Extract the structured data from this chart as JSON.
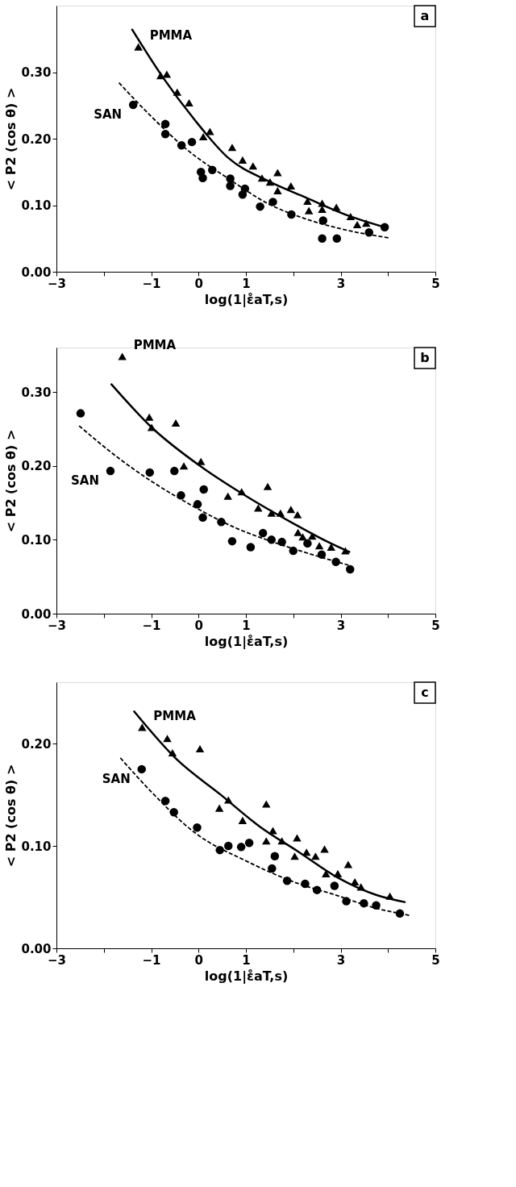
{
  "chart_data": [
    {
      "type": "scatter",
      "xlabel": "log(1|ε̊aT,s)",
      "ylabel": "< P2 (cos θ) >",
      "xlim": [
        -3,
        5
      ],
      "ylim": [
        0,
        0.4
      ],
      "xticks": [
        -3,
        {
          "value": -2,
          "label": null
        },
        -1,
        0,
        1,
        {
          "value": 2,
          "label": null
        },
        3,
        {
          "value": 4,
          "label": null
        },
        5
      ],
      "yticks": [
        {
          "value": 0,
          "label": "0.00"
        },
        {
          "value": 0.1,
          "label": "0.10"
        },
        {
          "value": 0.2,
          "label": "0.20"
        },
        {
          "value": 0.3,
          "label": "0.30"
        }
      ],
      "annotations": [
        "a"
      ],
      "series": [
        {
          "name": "PMMA",
          "marker": "triangle",
          "color": "#000000",
          "x": [
            -1.27,
            -0.8,
            -0.67,
            -0.45,
            -0.2,
            0.1,
            0.24,
            0.71,
            0.93,
            1.15,
            1.34,
            1.51,
            1.67,
            1.67,
            1.95,
            2.3,
            2.33,
            2.61,
            2.61,
            2.91,
            3.21,
            3.35,
            3.54
          ],
          "values": [
            0.338,
            0.295,
            0.297,
            0.27,
            0.254,
            0.203,
            0.211,
            0.187,
            0.168,
            0.159,
            0.141,
            0.135,
            0.149,
            0.122,
            0.129,
            0.106,
            0.092,
            0.103,
            0.094,
            0.097,
            0.083,
            0.071,
            0.073
          ]
        },
        {
          "type": "line",
          "line_style": "solid",
          "color": "#000000",
          "x": [
            -1.41,
            -0.75,
            -0.09,
            0.63,
            1.45,
            2.28,
            3.1,
            3.93
          ],
          "values": [
            0.365,
            0.292,
            0.229,
            0.171,
            0.137,
            0.111,
            0.086,
            0.067
          ]
        },
        {
          "name": "SAN",
          "marker": "circle",
          "color": "#000000",
          "x": [
            -1.38,
            -0.7,
            -0.7,
            -0.36,
            -0.14,
            0.05,
            0.09,
            0.29,
            0.67,
            0.67,
            0.98,
            0.93,
            1.3,
            1.57,
            1.96,
            2.63,
            2.61,
            2.92,
            3.6,
            3.93
          ],
          "values": [
            0.251,
            0.222,
            0.207,
            0.19,
            0.195,
            0.15,
            0.141,
            0.153,
            0.14,
            0.129,
            0.125,
            0.116,
            0.098,
            0.105,
            0.086,
            0.077,
            0.05,
            0.05,
            0.059,
            0.067
          ]
        },
        {
          "type": "line",
          "line_style": "dashed",
          "color": "#000000",
          "x": [
            -1.68,
            -1.02,
            -0.2,
            0.63,
            1.45,
            2.28,
            3.1,
            4.01
          ],
          "values": [
            0.284,
            0.235,
            0.181,
            0.14,
            0.103,
            0.079,
            0.063,
            0.051
          ]
        }
      ]
    },
    {
      "type": "scatter",
      "xlabel": "log(1|ε̊aT,s)",
      "ylabel": "< P2 (cos θ) >",
      "xlim": [
        -3,
        5
      ],
      "ylim": [
        0,
        0.36
      ],
      "xticks": [
        -3,
        {
          "value": -2,
          "label": null
        },
        -1,
        0,
        1,
        {
          "value": 2,
          "label": null
        },
        3,
        {
          "value": 4,
          "label": null
        },
        5
      ],
      "yticks": [
        {
          "value": 0,
          "label": "0.00"
        },
        {
          "value": 0.1,
          "label": "0.10"
        },
        {
          "value": 0.2,
          "label": "0.20"
        },
        {
          "value": 0.3,
          "label": "0.30"
        }
      ],
      "annotations": [
        "b"
      ],
      "series": [
        {
          "name": "PMMA",
          "marker": "triangle",
          "color": "#000000",
          "x": [
            -1.61,
            -1.04,
            -0.99,
            -0.48,
            -0.31,
            0.05,
            0.62,
            0.91,
            1.46,
            1.26,
            1.54,
            1.73,
            1.95,
            2.09,
            2.1,
            2.2,
            2.4,
            2.55,
            2.8,
            3.1
          ],
          "values": [
            0.348,
            0.266,
            0.252,
            0.258,
            0.2,
            0.206,
            0.159,
            0.165,
            0.172,
            0.143,
            0.136,
            0.136,
            0.141,
            0.134,
            0.11,
            0.104,
            0.105,
            0.092,
            0.09,
            0.085
          ]
        },
        {
          "type": "line",
          "line_style": "solid",
          "color": "#000000",
          "x": [
            -1.85,
            -0.99,
            0.05,
            0.93,
            2.03,
            2.7,
            3.2
          ],
          "values": [
            0.311,
            0.252,
            0.199,
            0.162,
            0.121,
            0.098,
            0.083
          ]
        },
        {
          "name": "SAN",
          "marker": "circle",
          "color": "#000000",
          "x": [
            -2.49,
            -1.86,
            -1.03,
            -0.51,
            -0.37,
            0.11,
            -0.02,
            0.09,
            0.48,
            0.71,
            1.36,
            1.54,
            1.76,
            1.1,
            2.0,
            2.3,
            2.6,
            2.9,
            3.2
          ],
          "values": [
            0.271,
            0.193,
            0.191,
            0.193,
            0.16,
            0.168,
            0.148,
            0.13,
            0.124,
            0.098,
            0.109,
            0.1,
            0.097,
            0.09,
            0.085,
            0.095,
            0.08,
            0.07,
            0.06
          ]
        },
        {
          "type": "line",
          "line_style": "dashed",
          "color": "#000000",
          "x": [
            -2.52,
            -1.7,
            -0.99,
            -0.16,
            0.82,
            1.48,
            2.5,
            3.2
          ],
          "values": [
            0.254,
            0.211,
            0.179,
            0.147,
            0.115,
            0.099,
            0.078,
            0.065
          ]
        }
      ]
    },
    {
      "type": "scatter",
      "xlabel": "log(1|ε̊aT,s)",
      "ylabel": "< P2 (cos θ) >",
      "xlim": [
        -3,
        5
      ],
      "ylim": [
        0,
        0.26
      ],
      "xticks": [
        -3,
        {
          "value": -2,
          "label": null
        },
        -1,
        0,
        1,
        {
          "value": 2,
          "label": null
        },
        3,
        {
          "value": 4,
          "label": null
        },
        5
      ],
      "yticks": [
        {
          "value": 0,
          "label": "0.00"
        },
        {
          "value": 0.1,
          "label": "0.10"
        },
        {
          "value": 0.2,
          "label": "0.20"
        }
      ],
      "annotations": [
        "c"
      ],
      "series": [
        {
          "name": "PMMA",
          "marker": "triangle",
          "color": "#000000",
          "x": [
            -1.19,
            -0.66,
            -0.55,
            0.03,
            0.44,
            0.63,
            0.93,
            1.43,
            1.43,
            1.57,
            1.76,
            2.08,
            2.03,
            2.28,
            2.47,
            2.66,
            2.69,
            2.94,
            3.16,
            3.3,
            3.43,
            4.04
          ],
          "values": [
            0.216,
            0.205,
            0.191,
            0.195,
            0.137,
            0.145,
            0.125,
            0.141,
            0.105,
            0.115,
            0.105,
            0.108,
            0.09,
            0.094,
            0.09,
            0.097,
            0.073,
            0.073,
            0.082,
            0.065,
            0.06,
            0.051
          ]
        },
        {
          "type": "line",
          "line_style": "solid",
          "color": "#000000",
          "x": [
            -1.37,
            -0.47,
            0.47,
            1.29,
            2.12,
            2.94,
            3.76,
            4.37
          ],
          "values": [
            0.232,
            0.185,
            0.15,
            0.119,
            0.094,
            0.069,
            0.052,
            0.045
          ]
        },
        {
          "name": "SAN",
          "marker": "circle",
          "color": "#000000",
          "x": [
            -1.2,
            -0.7,
            -0.52,
            -0.03,
            0.45,
            0.63,
            0.9,
            1.07,
            1.61,
            1.55,
            1.87,
            2.25,
            2.5,
            2.87,
            3.12,
            3.49,
            3.75,
            4.25
          ],
          "values": [
            0.175,
            0.144,
            0.133,
            0.118,
            0.096,
            0.1,
            0.099,
            0.103,
            0.09,
            0.078,
            0.066,
            0.063,
            0.057,
            0.061,
            0.046,
            0.044,
            0.042,
            0.034
          ]
        },
        {
          "type": "line",
          "line_style": "dashed",
          "color": "#000000",
          "x": [
            -1.65,
            -1.02,
            -0.08,
            1.02,
            2.12,
            2.83,
            3.76,
            4.48
          ],
          "values": [
            0.186,
            0.154,
            0.113,
            0.085,
            0.063,
            0.053,
            0.039,
            0.032
          ]
        }
      ]
    }
  ]
}
